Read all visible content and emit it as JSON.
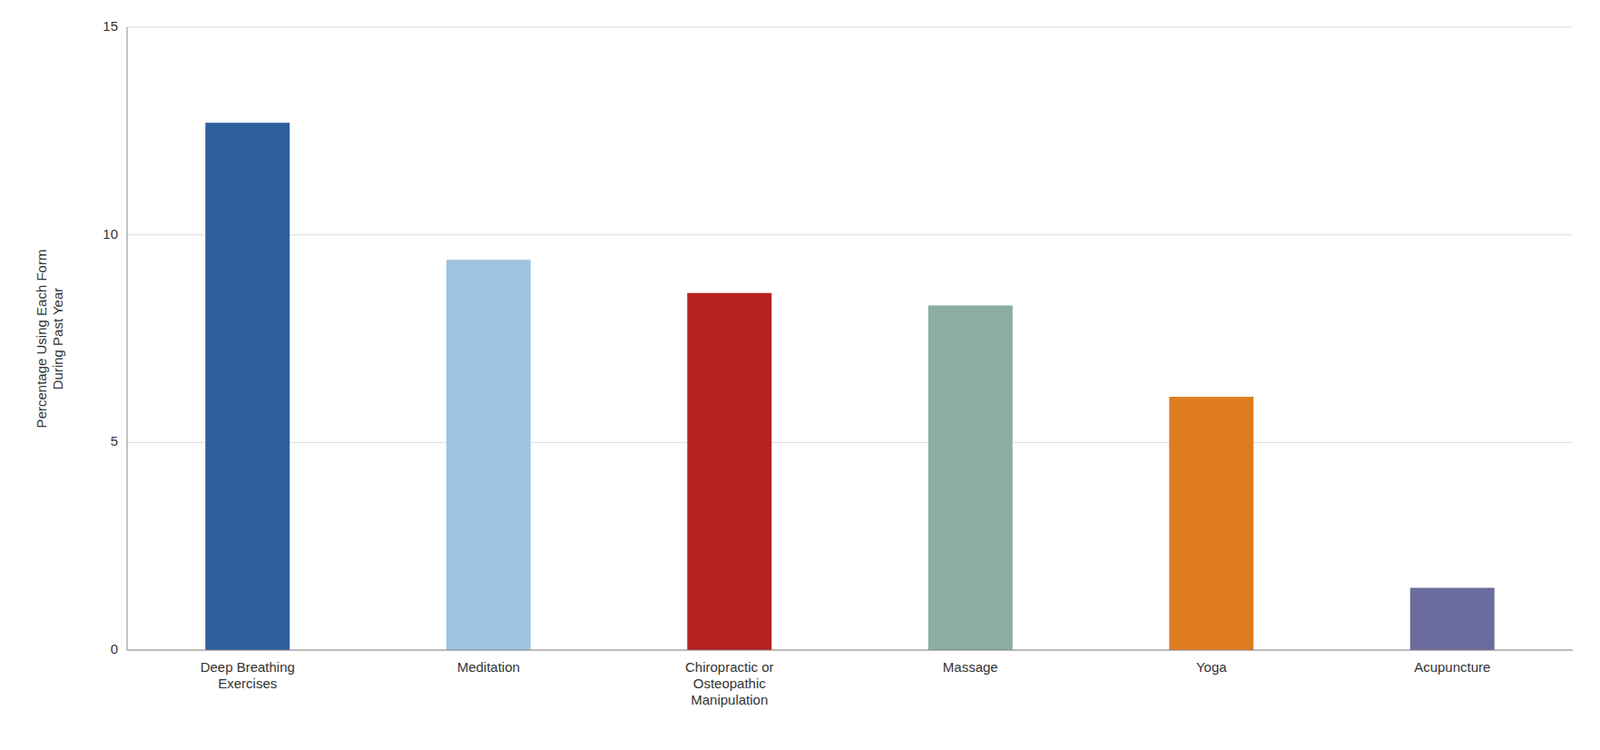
{
  "chart_data": {
    "type": "bar",
    "categories": [
      "Deep Breathing\nExercises",
      "Meditation",
      "Chiropractic or\nOsteopathic\nManipulation",
      "Massage",
      "Yoga",
      "Acupuncture"
    ],
    "values": [
      12.7,
      9.4,
      8.6,
      8.3,
      6.1,
      1.5
    ],
    "colors": [
      "#2e5f9e",
      "#9dc3e0",
      "#b52222",
      "#8aada4",
      "#e07c20",
      "#6b6b9e"
    ],
    "ylabel": "Percentage Using Each Form\nDuring Past Year",
    "ylim": [
      0,
      15
    ],
    "yticks": [
      0,
      5,
      10,
      15
    ],
    "grid": true
  }
}
